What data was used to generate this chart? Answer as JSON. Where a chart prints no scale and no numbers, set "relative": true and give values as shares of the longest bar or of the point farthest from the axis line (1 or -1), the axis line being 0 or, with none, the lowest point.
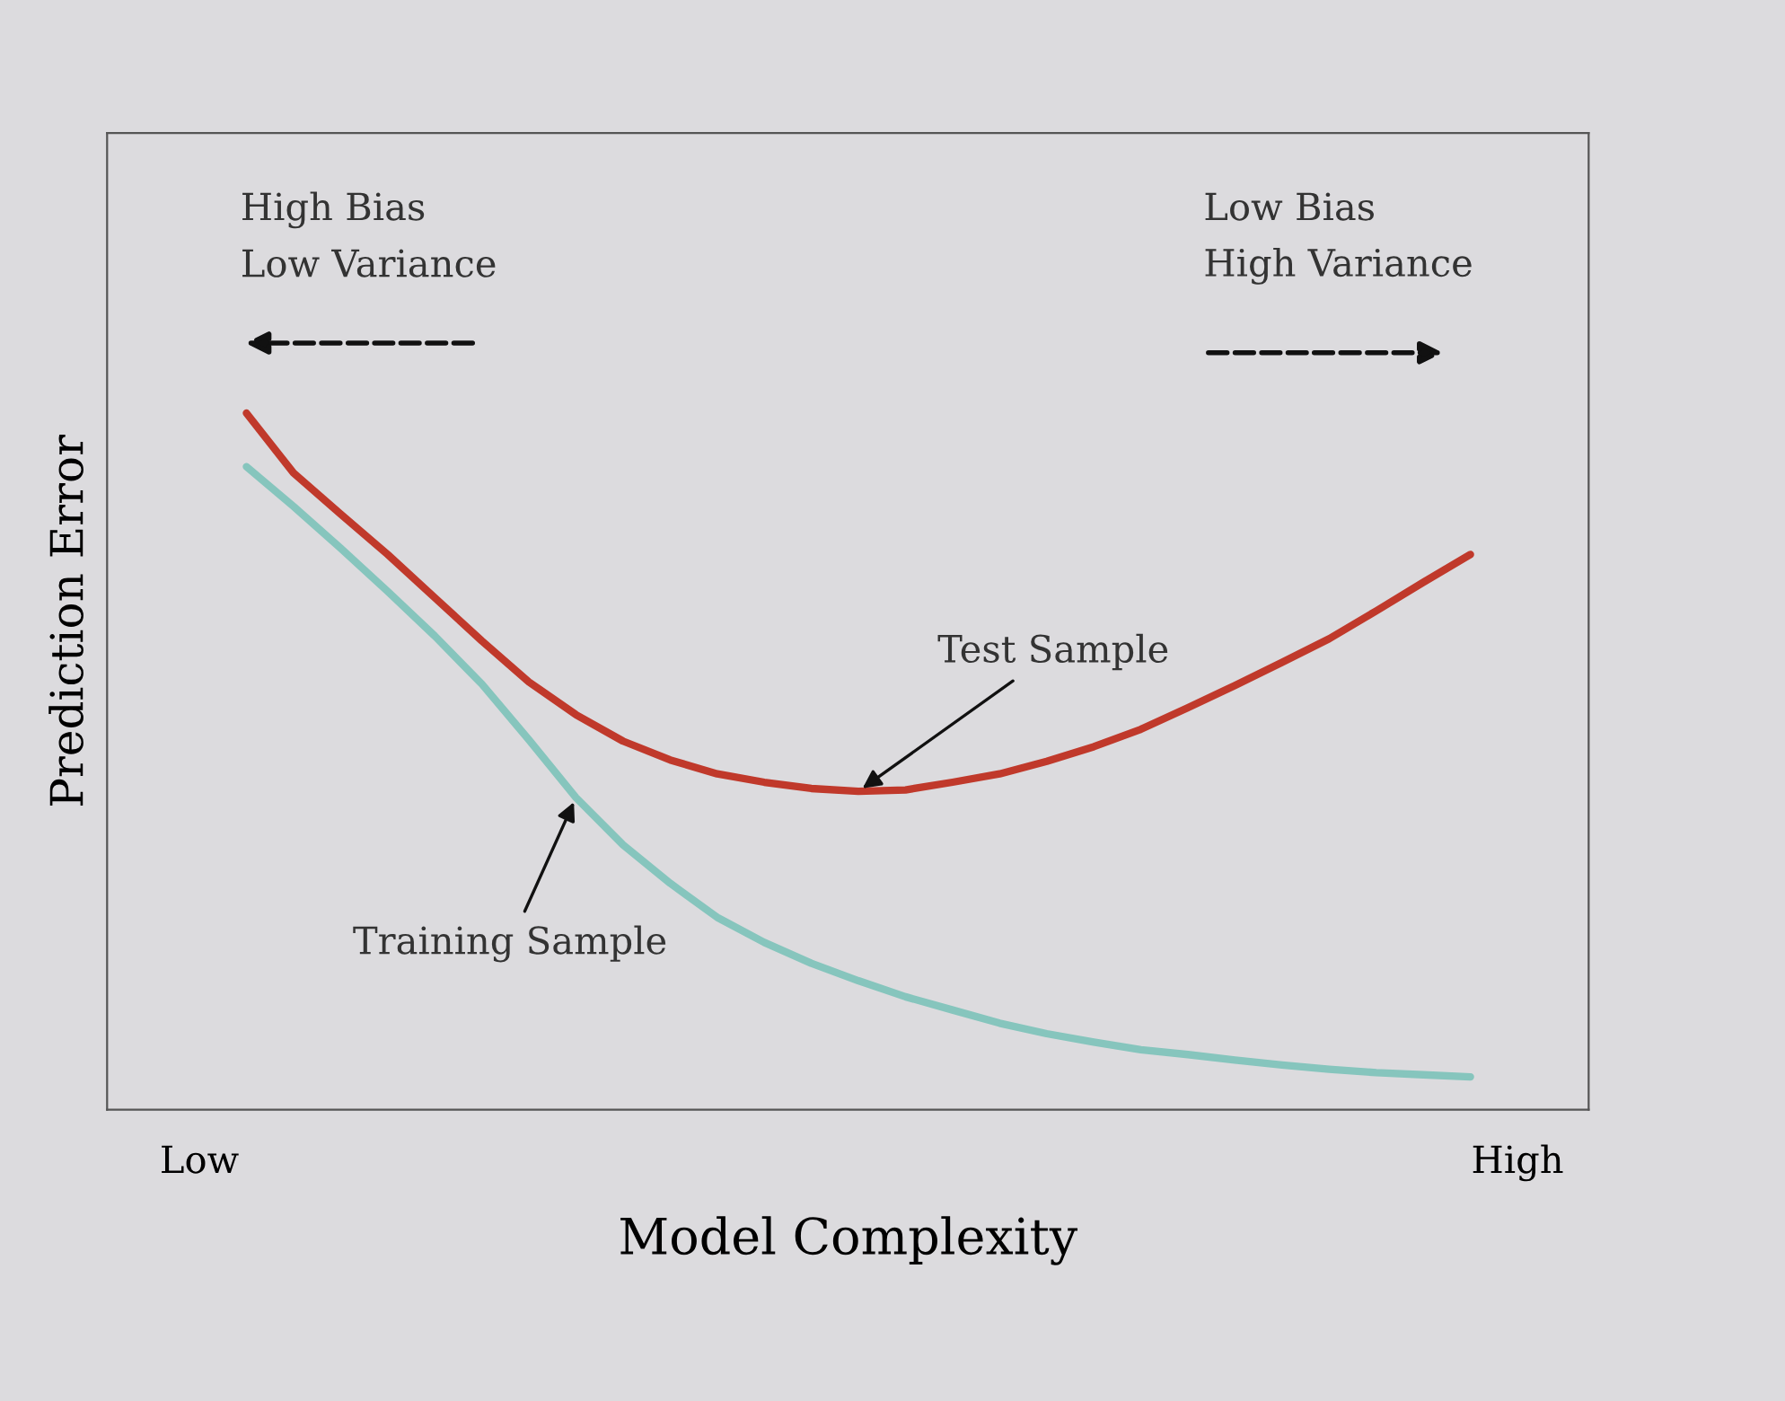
{
  "chart_data": {
    "type": "line",
    "relative": true,
    "xlabel": "Model Complexity",
    "ylabel": "Prediction Error",
    "categories": [
      "Low",
      null,
      null,
      null,
      null,
      null,
      null,
      null,
      null,
      null,
      null,
      null,
      null,
      null,
      null,
      null,
      null,
      null,
      null,
      null,
      null,
      null,
      null,
      null,
      null,
      null,
      null,
      null,
      "High"
    ],
    "series": [
      {
        "name": "Test Sample",
        "color": "#c0392b",
        "values": [
          null,
          1.0,
          0.914,
          0.855,
          0.797,
          0.735,
          0.673,
          0.614,
          0.567,
          0.529,
          0.502,
          0.482,
          0.47,
          0.461,
          0.457,
          0.459,
          0.47,
          0.482,
          0.5,
          0.521,
          0.546,
          0.577,
          0.609,
          0.642,
          0.676,
          0.716,
          0.757,
          0.797,
          null
        ]
      },
      {
        "name": "Training Sample",
        "color": "#86c5bd",
        "values": [
          null,
          0.923,
          0.866,
          0.806,
          0.744,
          0.68,
          0.611,
          0.531,
          0.448,
          0.38,
          0.325,
          0.276,
          0.24,
          0.21,
          0.185,
          0.162,
          0.143,
          0.124,
          0.109,
          0.097,
          0.086,
          0.079,
          0.071,
          0.064,
          0.058,
          0.053,
          0.05,
          0.047,
          null
        ]
      }
    ],
    "annotations": [
      "High Bias\nLow Variance",
      "Low Bias\nHigh Variance"
    ],
    "grid": false,
    "legend": false,
    "marker": "none",
    "line_style": "solid"
  }
}
